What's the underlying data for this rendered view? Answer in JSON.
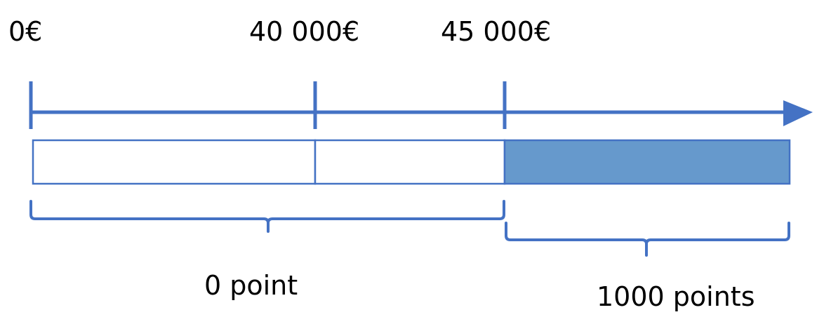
{
  "colors": {
    "line": "#4472C4",
    "fill": "#6699CC",
    "empty": "#FFFFFF",
    "text": "#000000"
  },
  "ticks": [
    {
      "label": "0€",
      "value": 0
    },
    {
      "label": "40 000€",
      "value": 40000
    },
    {
      "label": "45 000€",
      "value": 45000
    }
  ],
  "segments": [
    {
      "from": 0,
      "to": 40000,
      "filled": false
    },
    {
      "from": 40000,
      "to": 45000,
      "filled": false
    },
    {
      "from": 45000,
      "to": null,
      "filled": true
    }
  ],
  "braces": [
    {
      "label": "0 point",
      "from": 0,
      "to": 45000
    },
    {
      "label": "1000 points",
      "from": 45000,
      "to": null
    }
  ]
}
